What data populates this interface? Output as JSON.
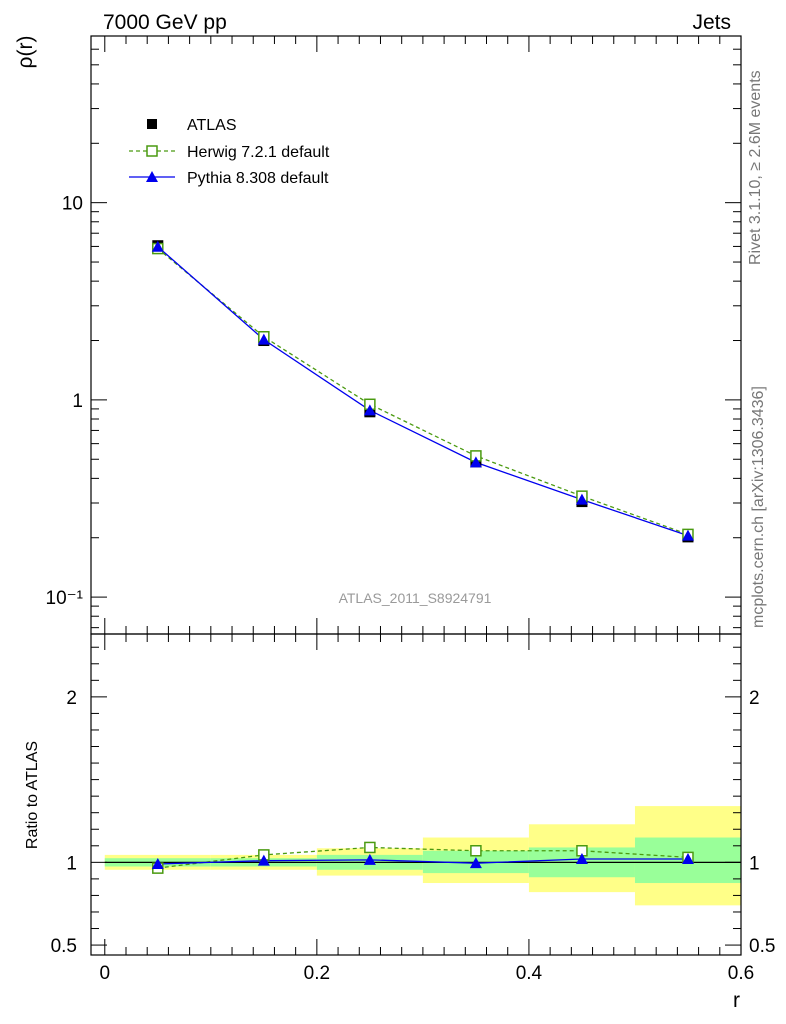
{
  "header": {
    "left_title": "7000 GeV pp",
    "right_title": "Jets"
  },
  "side_text": {
    "rivet": "Rivet 3.1.10, ≥ 2.6M events",
    "source": "mcplots.cern.ch [arXiv:1306.3436]"
  },
  "watermark": "ATLAS_2011_S8924791",
  "colors": {
    "atlas": "#000000",
    "herwig": "#4a9a10",
    "pythia": "#0000ee",
    "band_inner": "#99ff99",
    "band_outer": "#ffff88"
  },
  "chart_data": [
    {
      "type": "scatter",
      "panel": "main",
      "ylabel": "ρ(r)",
      "yscale": "log",
      "ylim": [
        0.065,
        70
      ],
      "xlim": [
        -0.013,
        0.6
      ],
      "ytick_labels": [
        "10",
        "1",
        "10⁻¹"
      ],
      "legend_position": "top-left",
      "series": [
        {
          "name": "ATLAS",
          "marker": "filled-square",
          "x": [
            0.05,
            0.15,
            0.25,
            0.35,
            0.45,
            0.55
          ],
          "values": [
            6.05,
            2.0,
            0.87,
            0.485,
            0.305,
            0.202
          ]
        },
        {
          "name": "Herwig 7.2.1 default",
          "marker": "open-square",
          "linestyle": "dashed",
          "x": [
            0.05,
            0.15,
            0.25,
            0.35,
            0.45,
            0.55
          ],
          "values": [
            5.85,
            2.09,
            0.95,
            0.52,
            0.325,
            0.208
          ]
        },
        {
          "name": "Pythia 8.308 default",
          "marker": "filled-triangle",
          "linestyle": "solid",
          "x": [
            0.05,
            0.15,
            0.25,
            0.35,
            0.45,
            0.55
          ],
          "values": [
            5.98,
            2.02,
            0.885,
            0.482,
            0.312,
            0.205
          ]
        }
      ]
    },
    {
      "type": "line",
      "panel": "ratio",
      "ylabel": "Ratio to ATLAS",
      "xlabel": "r",
      "ylim": [
        0.44,
        2.38
      ],
      "xlim": [
        -0.013,
        0.6
      ],
      "xtick_labels": [
        "0",
        "0.2",
        "0.4",
        "0.6"
      ],
      "ytick_labels": [
        "2",
        "1",
        "0.5"
      ],
      "uncertainty_bands": {
        "x_low": [
          0.0,
          0.1,
          0.2,
          0.3,
          0.4,
          0.5
        ],
        "x_high": [
          0.1,
          0.2,
          0.3,
          0.4,
          0.5,
          0.6
        ],
        "inner_low": [
          0.975,
          0.975,
          0.955,
          0.935,
          0.91,
          0.875
        ],
        "inner_high": [
          1.025,
          1.025,
          1.045,
          1.07,
          1.09,
          1.15
        ],
        "outer_low": [
          0.955,
          0.955,
          0.92,
          0.875,
          0.82,
          0.74
        ],
        "outer_high": [
          1.045,
          1.045,
          1.085,
          1.15,
          1.23,
          1.34
        ]
      },
      "series": [
        {
          "name": "Herwig 7.2.1 default",
          "marker": "open-square",
          "linestyle": "dashed",
          "x": [
            0.05,
            0.15,
            0.25,
            0.35,
            0.45,
            0.55
          ],
          "values": [
            0.965,
            1.045,
            1.09,
            1.07,
            1.07,
            1.03
          ]
        },
        {
          "name": "Pythia 8.308 default",
          "marker": "filled-triangle",
          "linestyle": "solid",
          "x": [
            0.05,
            0.15,
            0.25,
            0.35,
            0.45,
            0.55
          ],
          "values": [
            0.99,
            1.01,
            1.015,
            0.995,
            1.02,
            1.02
          ]
        }
      ]
    }
  ]
}
